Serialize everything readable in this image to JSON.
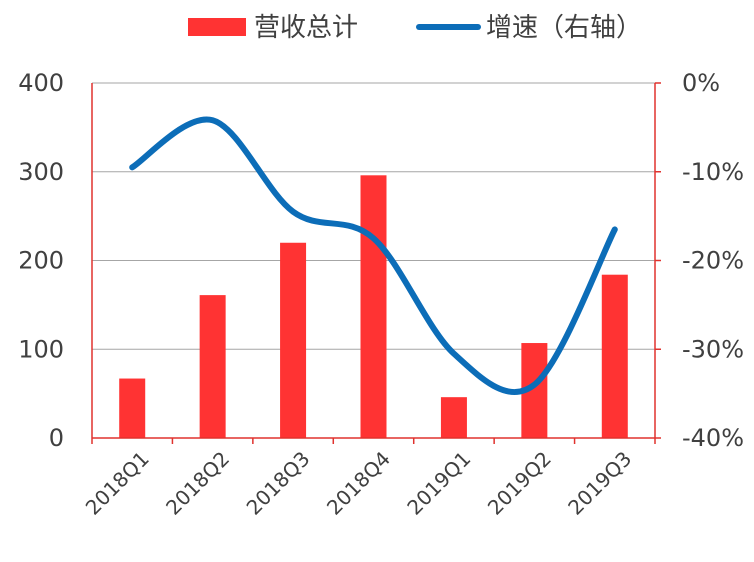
{
  "chart_data": {
    "type": "bar",
    "categories": [
      "2018Q1",
      "2018Q2",
      "2018Q3",
      "2018Q4",
      "2019Q1",
      "2019Q2",
      "2019Q3"
    ],
    "series": [
      {
        "name": "营收总计",
        "type": "bar",
        "axis": "left",
        "color": "#FF3333",
        "values": [
          67,
          161,
          220,
          296,
          46,
          107,
          184
        ]
      },
      {
        "name": "增速（右轴）",
        "type": "line",
        "axis": "right",
        "color": "#0C6DB8",
        "values": [
          -9.5,
          -4.2,
          -14.5,
          -17.5,
          -30.5,
          -34.0,
          -16.5
        ]
      }
    ],
    "y_left": {
      "min": 0,
      "max": 400,
      "ticks": [
        0,
        100,
        200,
        300,
        400
      ],
      "tick_labels": [
        "0",
        "100",
        "200",
        "300",
        "400"
      ]
    },
    "y_right": {
      "min": -40,
      "max": 0,
      "ticks": [
        -40,
        -30,
        -20,
        -10,
        0
      ],
      "tick_labels": [
        "-40%",
        "-30%",
        "-20%",
        "-10%",
        "0%"
      ]
    },
    "grid": true,
    "legend_position": "top",
    "title": "",
    "xlabel": "",
    "ylabel": ""
  }
}
